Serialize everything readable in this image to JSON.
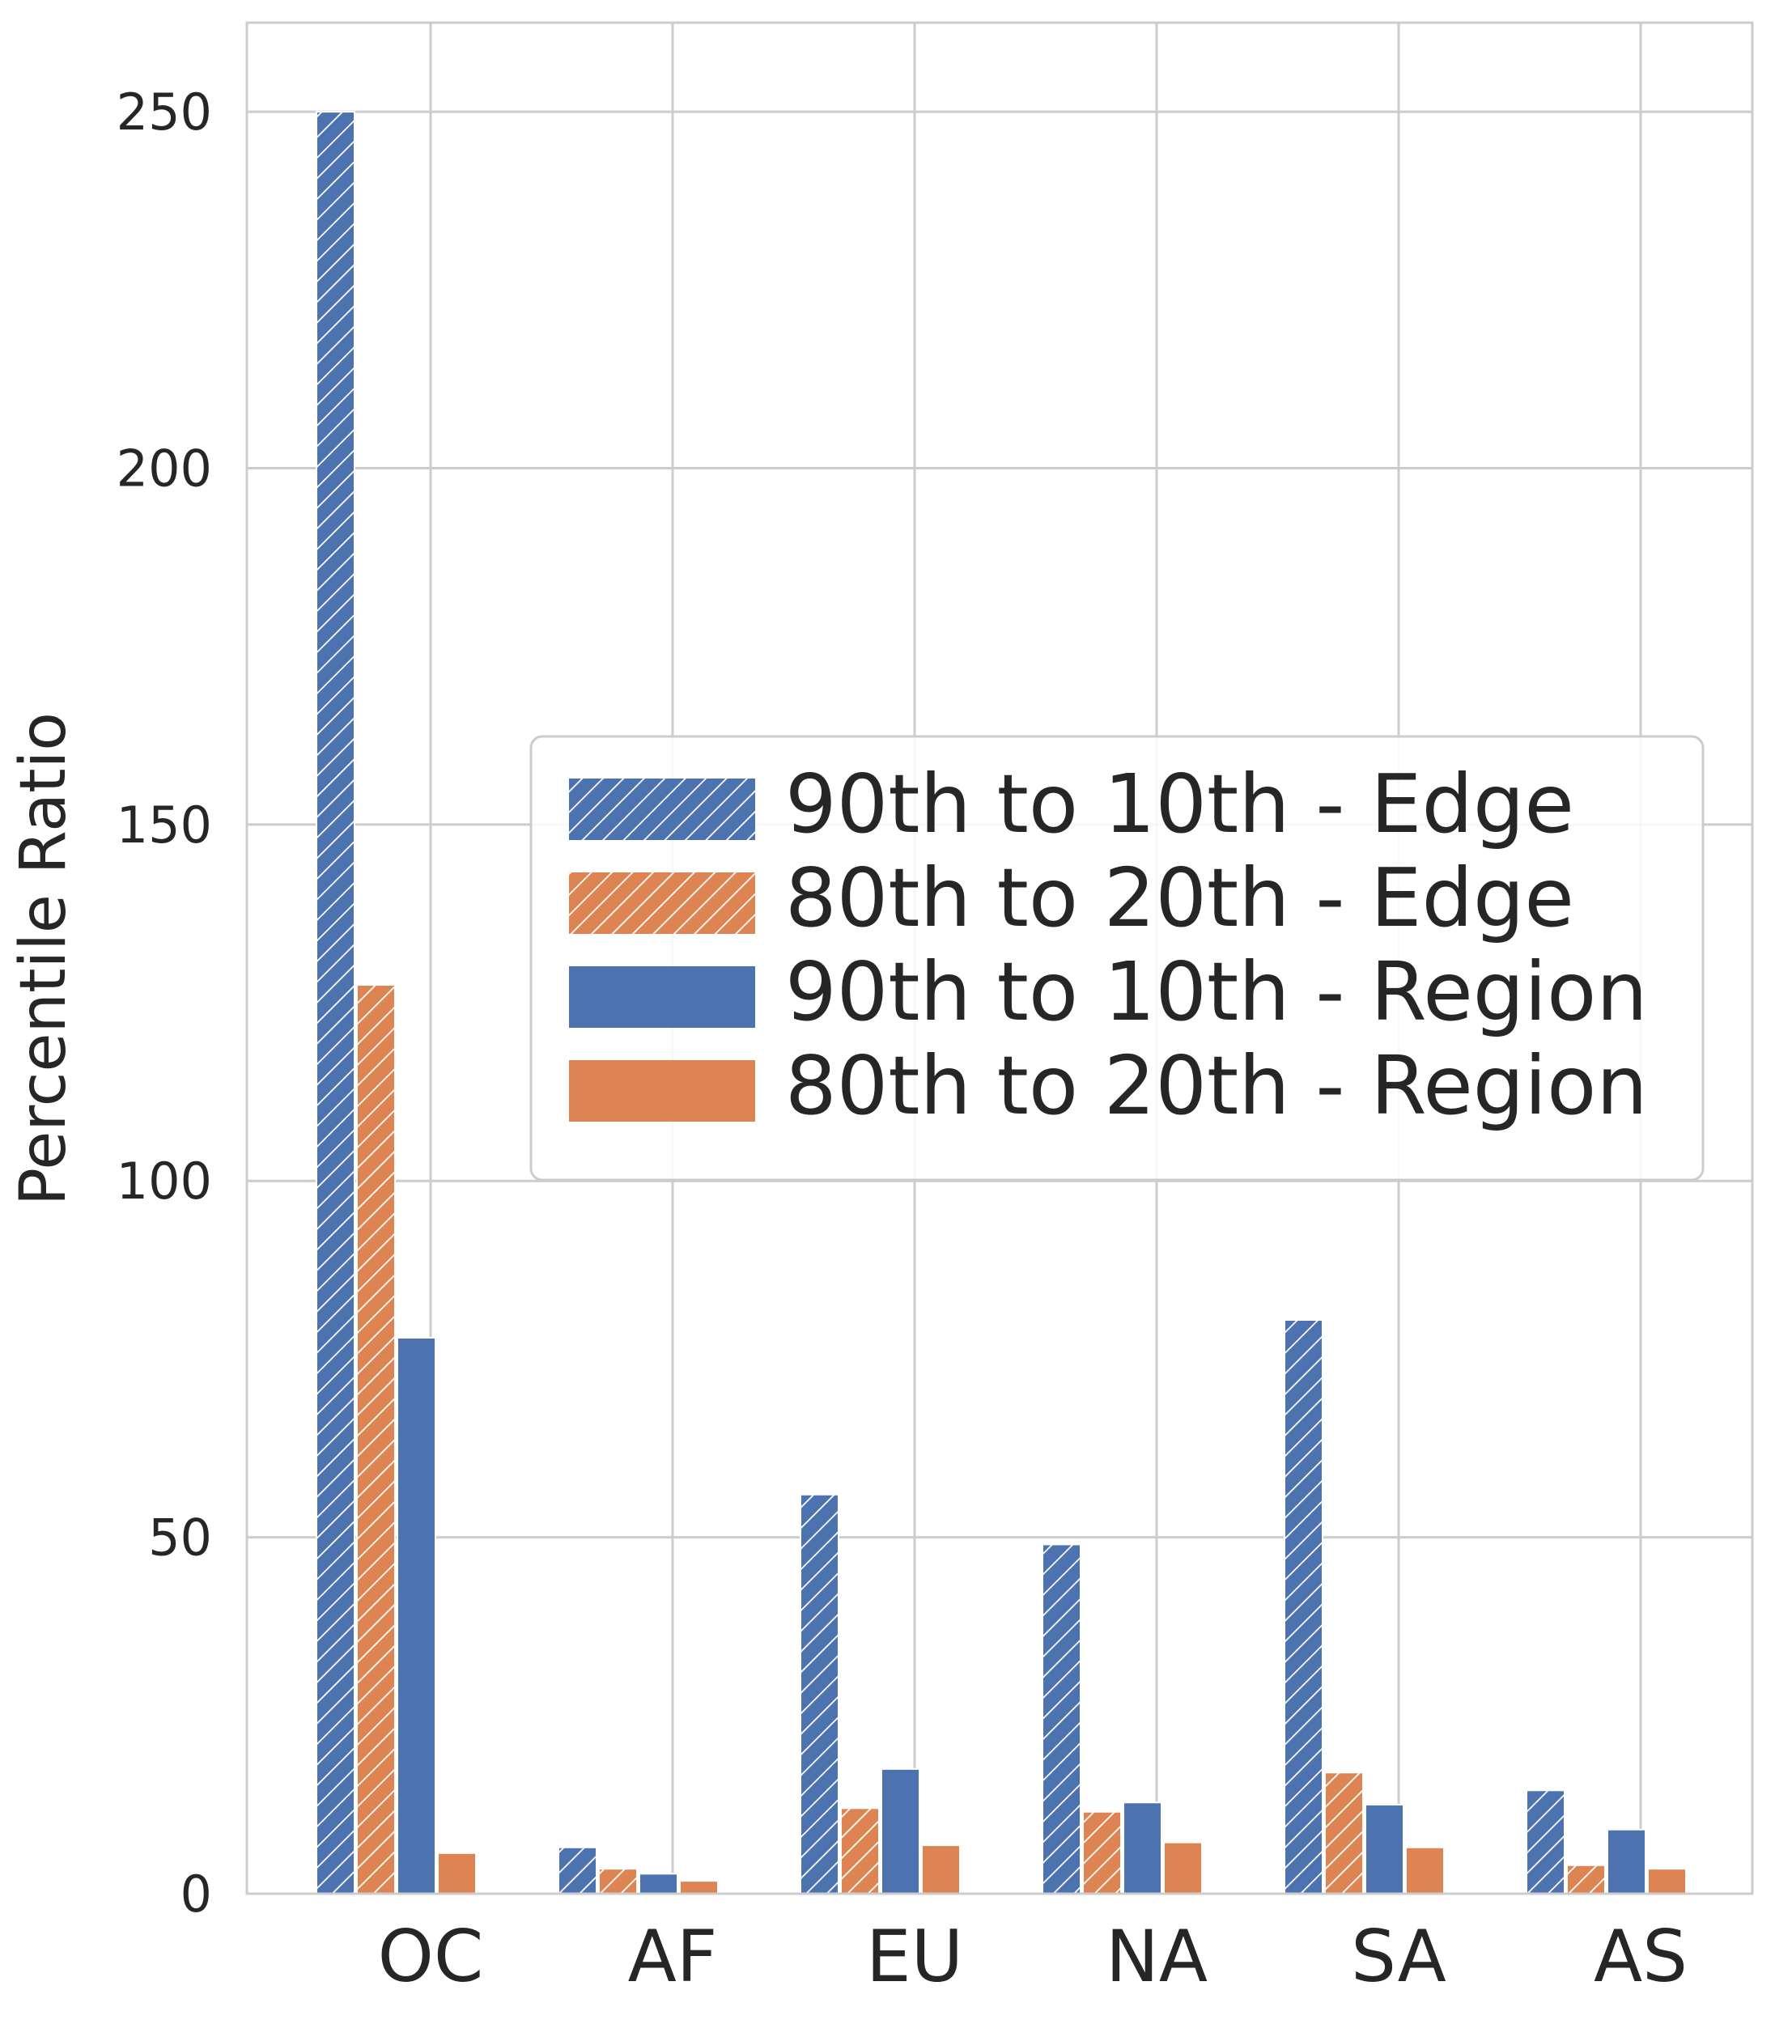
{
  "chart_data": {
    "type": "bar",
    "title": "",
    "xlabel": "",
    "ylabel": "Percentile Ratio",
    "categories": [
      "OC",
      "AF",
      "EU",
      "NA",
      "SA",
      "AS"
    ],
    "series": [
      {
        "name": "90th to 10th - Edge",
        "values": [
          250,
          6.5,
          56,
          49,
          80.5,
          14.5
        ],
        "color": "#4c72b0",
        "hatch": true
      },
      {
        "name": "80th to 20th - Edge",
        "values": [
          127.5,
          3.5,
          12,
          11.5,
          17,
          4
        ],
        "color": "#dd8452",
        "hatch": true
      },
      {
        "name": "90th to 10th - Region",
        "values": [
          78,
          2.8,
          17.5,
          12.8,
          12.5,
          9
        ],
        "color": "#4c72b0",
        "hatch": false
      },
      {
        "name": "80th to 20th - Region",
        "values": [
          5.7,
          1.8,
          6.8,
          7.2,
          6.5,
          3.5
        ],
        "color": "#dd8452",
        "hatch": false
      }
    ],
    "ylim": [
      0,
      262.5
    ],
    "yticks": [
      0,
      50,
      100,
      150,
      200,
      250
    ],
    "grid": true,
    "legend_position": "center-right"
  }
}
